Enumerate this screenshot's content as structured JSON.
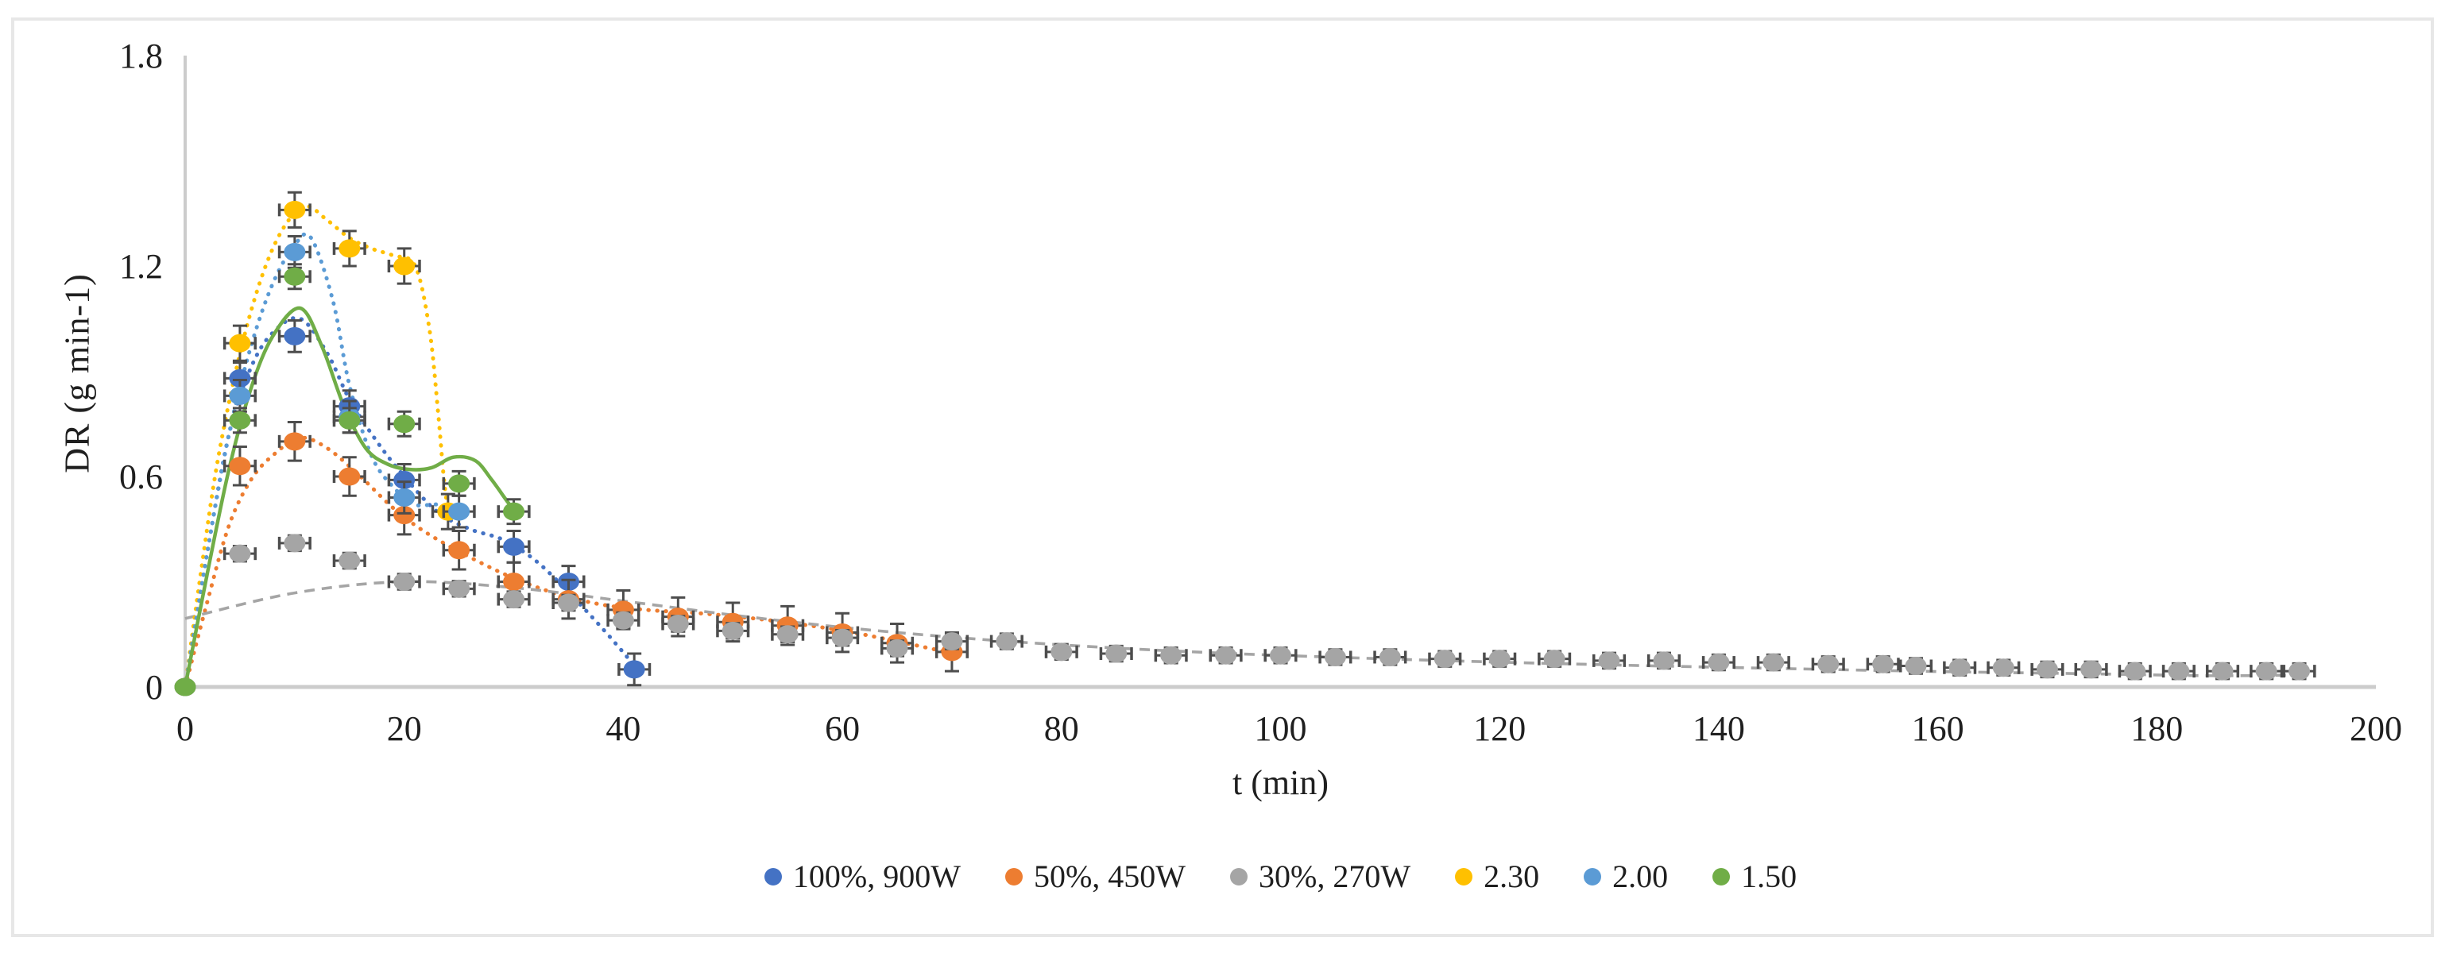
{
  "figure": {
    "background": "#ffffff",
    "border_color": "#e7e7e7"
  },
  "chart_data": {
    "type": "scatter",
    "title": "",
    "xlabel": "t (min)",
    "ylabel": "DR (g min-1)",
    "xlim": [
      0,
      200
    ],
    "ylim": [
      0,
      1.8
    ],
    "x_ticks": [
      0,
      20,
      40,
      60,
      80,
      100,
      120,
      140,
      160,
      180,
      200
    ],
    "y_ticks": [
      {
        "v": 0,
        "label": "0"
      },
      {
        "v": 0.6,
        "label": "0.6"
      },
      {
        "v": 1.2,
        "label": "1.2"
      },
      {
        "v": 1.8,
        "label": "1.8"
      }
    ],
    "grid": false,
    "legend_position": "bottom-center",
    "axis_color": "#cccccc",
    "text_color": "#1f1f1f",
    "error_bar_color": "#4d4d4d",
    "series": [
      {
        "name": "100%, 900W",
        "color": "#4472C4",
        "line_style": "dotted",
        "err_y": 0.045,
        "err_x": 1.4,
        "points": [
          [
            0,
            0
          ],
          [
            5,
            0.88
          ],
          [
            10,
            1.0
          ],
          [
            15,
            0.8
          ],
          [
            20,
            0.59
          ],
          [
            30,
            0.4
          ],
          [
            35,
            0.3
          ],
          [
            41,
            0.05
          ]
        ],
        "trend": [
          [
            0,
            0
          ],
          [
            2,
            0.38
          ],
          [
            4,
            0.72
          ],
          [
            6,
            0.91
          ],
          [
            8,
            1.01
          ],
          [
            10.5,
            1.05
          ],
          [
            13,
            0.95
          ],
          [
            15,
            0.82
          ],
          [
            17.5,
            0.7
          ],
          [
            20,
            0.6
          ],
          [
            23,
            0.5
          ],
          [
            26,
            0.45
          ],
          [
            29,
            0.42
          ],
          [
            32,
            0.36
          ],
          [
            35,
            0.27
          ],
          [
            38,
            0.17
          ],
          [
            40.5,
            0.08
          ],
          [
            41.8,
            0.03
          ]
        ]
      },
      {
        "name": "50%, 450W",
        "color": "#ED7D31",
        "line_style": "dotted",
        "err_y": 0.055,
        "err_x": 1.4,
        "points": [
          [
            0,
            0
          ],
          [
            5,
            0.63
          ],
          [
            10,
            0.7
          ],
          [
            15,
            0.6
          ],
          [
            20,
            0.49
          ],
          [
            25,
            0.39
          ],
          [
            30,
            0.3
          ],
          [
            35,
            0.25
          ],
          [
            40,
            0.22
          ],
          [
            45,
            0.2
          ],
          [
            50,
            0.185
          ],
          [
            55,
            0.175
          ],
          [
            60,
            0.155
          ],
          [
            65,
            0.125
          ],
          [
            70,
            0.1
          ]
        ],
        "trend": [
          [
            0,
            0
          ],
          [
            2,
            0.24
          ],
          [
            4,
            0.46
          ],
          [
            6,
            0.59
          ],
          [
            8,
            0.66
          ],
          [
            10.5,
            0.71
          ],
          [
            13,
            0.68
          ],
          [
            16,
            0.6
          ],
          [
            19,
            0.51
          ],
          [
            22,
            0.44
          ],
          [
            26,
            0.37
          ],
          [
            30,
            0.31
          ],
          [
            34,
            0.265
          ],
          [
            38,
            0.235
          ],
          [
            42,
            0.22
          ],
          [
            47,
            0.21
          ],
          [
            52,
            0.195
          ],
          [
            57,
            0.175
          ],
          [
            61,
            0.155
          ],
          [
            65,
            0.13
          ],
          [
            68,
            0.11
          ],
          [
            71,
            0.09
          ]
        ]
      },
      {
        "name": "30%, 270W",
        "color": "#A5A5A5",
        "line_style": "dashed",
        "err_y": 0.022,
        "err_x": 1.4,
        "points": [
          [
            0,
            0
          ],
          [
            5,
            0.38
          ],
          [
            10,
            0.41
          ],
          [
            15,
            0.36
          ],
          [
            20,
            0.3
          ],
          [
            25,
            0.28
          ],
          [
            30,
            0.25
          ],
          [
            35,
            0.24
          ],
          [
            40,
            0.19
          ],
          [
            45,
            0.18
          ],
          [
            50,
            0.16
          ],
          [
            55,
            0.15
          ],
          [
            60,
            0.14
          ],
          [
            65,
            0.11
          ],
          [
            70,
            0.13
          ],
          [
            75,
            0.13
          ],
          [
            80,
            0.1
          ],
          [
            85,
            0.095
          ],
          [
            90,
            0.09
          ],
          [
            95,
            0.09
          ],
          [
            100,
            0.09
          ],
          [
            105,
            0.085
          ],
          [
            110,
            0.085
          ],
          [
            115,
            0.08
          ],
          [
            120,
            0.08
          ],
          [
            125,
            0.08
          ],
          [
            130,
            0.075
          ],
          [
            135,
            0.075
          ],
          [
            140,
            0.07
          ],
          [
            145,
            0.07
          ],
          [
            150,
            0.065
          ],
          [
            155,
            0.065
          ],
          [
            158,
            0.06
          ],
          [
            162,
            0.055
          ],
          [
            166,
            0.055
          ],
          [
            170,
            0.05
          ],
          [
            174,
            0.05
          ],
          [
            178,
            0.045
          ],
          [
            182,
            0.045
          ],
          [
            186,
            0.045
          ],
          [
            190,
            0.045
          ],
          [
            193,
            0.045
          ]
        ],
        "trend": [
          [
            0,
            0.195
          ],
          [
            10,
            0.268
          ],
          [
            20,
            0.3
          ],
          [
            30,
            0.283
          ],
          [
            40,
            0.245
          ],
          [
            50,
            0.205
          ],
          [
            60,
            0.17
          ],
          [
            70,
            0.142
          ],
          [
            80,
            0.12
          ],
          [
            90,
            0.103
          ],
          [
            100,
            0.09
          ],
          [
            115,
            0.075
          ],
          [
            130,
            0.063
          ],
          [
            145,
            0.053
          ],
          [
            160,
            0.044
          ],
          [
            175,
            0.037
          ],
          [
            185,
            0.032
          ],
          [
            193,
            0.034
          ]
        ]
      },
      {
        "name": "2.30",
        "color": "#FFC000",
        "line_style": "dotted",
        "err_y": 0.05,
        "err_x": 1.4,
        "points": [
          [
            0,
            0
          ],
          [
            5,
            0.98
          ],
          [
            10,
            1.36
          ],
          [
            15,
            1.25
          ],
          [
            20,
            1.2
          ],
          [
            24,
            0.5
          ]
        ],
        "trend": [
          [
            0,
            0
          ],
          [
            1.5,
            0.34
          ],
          [
            3,
            0.65
          ],
          [
            5,
            0.95
          ],
          [
            7,
            1.17
          ],
          [
            9,
            1.31
          ],
          [
            11,
            1.37
          ],
          [
            13,
            1.33
          ],
          [
            15,
            1.28
          ],
          [
            17,
            1.25
          ],
          [
            19,
            1.23
          ],
          [
            21,
            1.2
          ],
          [
            22.3,
            1.02
          ],
          [
            23.1,
            0.78
          ],
          [
            23.6,
            0.6
          ],
          [
            24,
            0.5
          ]
        ]
      },
      {
        "name": "2.00",
        "color": "#5B9BD5",
        "line_style": "dotted",
        "err_y": 0.045,
        "err_x": 1.4,
        "points": [
          [
            0,
            0
          ],
          [
            5,
            0.83
          ],
          [
            10,
            1.24
          ],
          [
            15,
            0.77
          ],
          [
            20,
            0.54
          ],
          [
            25,
            0.5
          ]
        ],
        "trend": [
          [
            0,
            0
          ],
          [
            2,
            0.38
          ],
          [
            4,
            0.72
          ],
          [
            6,
            0.97
          ],
          [
            8,
            1.15
          ],
          [
            10,
            1.26
          ],
          [
            11.5,
            1.28
          ],
          [
            13.5,
            1.1
          ],
          [
            15,
            0.86
          ],
          [
            17,
            0.66
          ],
          [
            19,
            0.57
          ],
          [
            21,
            0.52
          ],
          [
            23,
            0.52
          ],
          [
            25,
            0.5
          ]
        ]
      },
      {
        "name": "1.50",
        "color": "#70AD47",
        "line_style": "solid",
        "err_y": 0.035,
        "err_x": 1.4,
        "points": [
          [
            0,
            0
          ],
          [
            5,
            0.76
          ],
          [
            10,
            1.17
          ],
          [
            15,
            0.76
          ],
          [
            20,
            0.75
          ],
          [
            25,
            0.58
          ],
          [
            30,
            0.5
          ]
        ],
        "trend": [
          [
            0,
            0
          ],
          [
            2,
            0.32
          ],
          [
            4,
            0.62
          ],
          [
            6,
            0.85
          ],
          [
            8,
            1.0
          ],
          [
            10.5,
            1.08
          ],
          [
            12.5,
            0.97
          ],
          [
            14.5,
            0.8
          ],
          [
            16.5,
            0.68
          ],
          [
            18.5,
            0.635
          ],
          [
            20.5,
            0.62
          ],
          [
            22.5,
            0.625
          ],
          [
            24.5,
            0.655
          ],
          [
            26.5,
            0.645
          ],
          [
            28,
            0.59
          ],
          [
            29.5,
            0.525
          ],
          [
            30.2,
            0.5
          ]
        ]
      }
    ]
  }
}
